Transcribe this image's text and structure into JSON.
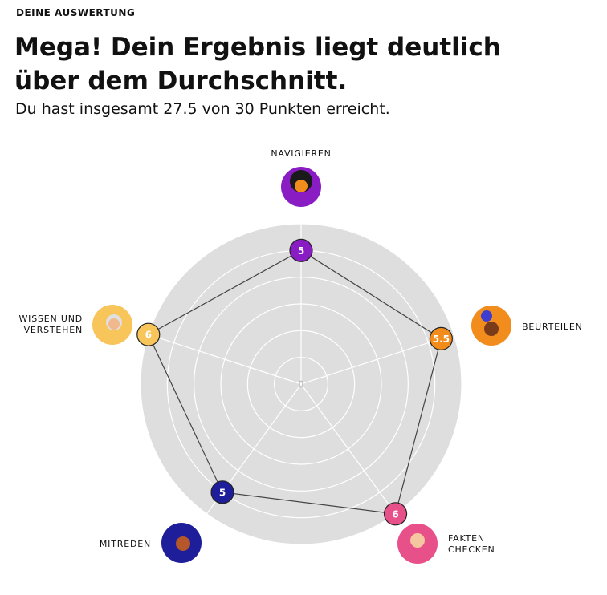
{
  "header": {
    "eyebrow": "DEINE AUSWERTUNG",
    "title": "Mega! Dein Ergebnis liegt deutlich über dem Durchschnitt.",
    "subtitle": "Du hast insgesamt 27.5 von 30 Punkten erreicht."
  },
  "chart_data": {
    "type": "radar",
    "categories": [
      "NAVIGIEREN",
      "BEURTEILEN",
      "FAKTEN CHECKEN",
      "MITREDEN",
      "WISSEN UND VERSTEHEN"
    ],
    "values": [
      5,
      5.5,
      6,
      5,
      6
    ],
    "colors": [
      "#8a1cc4",
      "#f28c1c",
      "#e8508a",
      "#1e1e9a",
      "#f7c55a"
    ],
    "rlim": [
      0,
      6
    ],
    "rticks": [
      1,
      2,
      3,
      4,
      5,
      6
    ]
  }
}
